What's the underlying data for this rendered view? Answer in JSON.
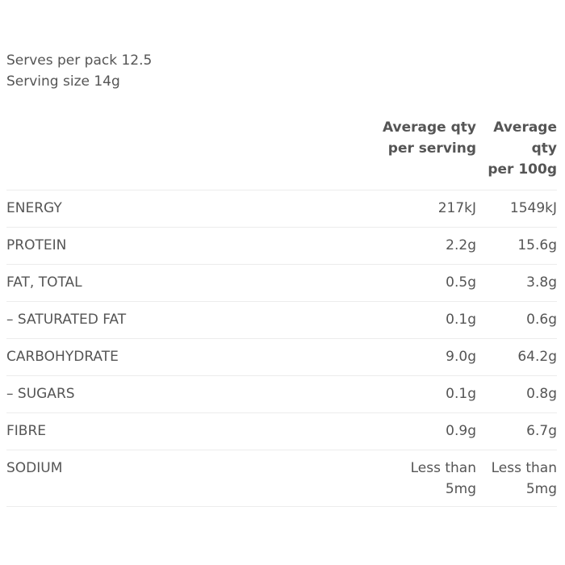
{
  "summary": {
    "serves_per_pack": "Serves per pack 12.5",
    "serving_size": "Serving size 14g"
  },
  "table": {
    "headers": {
      "per_serving": [
        "Average qty",
        "per serving"
      ],
      "per_100g": [
        "Average",
        "qty",
        "per 100g"
      ]
    },
    "rows": [
      {
        "name": "ENERGY",
        "per_serving": [
          "217kJ"
        ],
        "per_100g": [
          "1549kJ"
        ]
      },
      {
        "name": "PROTEIN",
        "per_serving": [
          "2.2g"
        ],
        "per_100g": [
          "15.6g"
        ]
      },
      {
        "name": "FAT, TOTAL",
        "per_serving": [
          "0.5g"
        ],
        "per_100g": [
          "3.8g"
        ]
      },
      {
        "name": "– SATURATED FAT",
        "per_serving": [
          "0.1g"
        ],
        "per_100g": [
          "0.6g"
        ]
      },
      {
        "name": "CARBOHYDRATE",
        "per_serving": [
          "9.0g"
        ],
        "per_100g": [
          "64.2g"
        ]
      },
      {
        "name": "– SUGARS",
        "per_serving": [
          "0.1g"
        ],
        "per_100g": [
          "0.8g"
        ]
      },
      {
        "name": "FIBRE",
        "per_serving": [
          "0.9g"
        ],
        "per_100g": [
          "6.7g"
        ]
      },
      {
        "name": "SODIUM",
        "per_serving": [
          "Less than",
          "5mg"
        ],
        "per_100g": [
          "Less than",
          "5mg"
        ]
      }
    ]
  }
}
